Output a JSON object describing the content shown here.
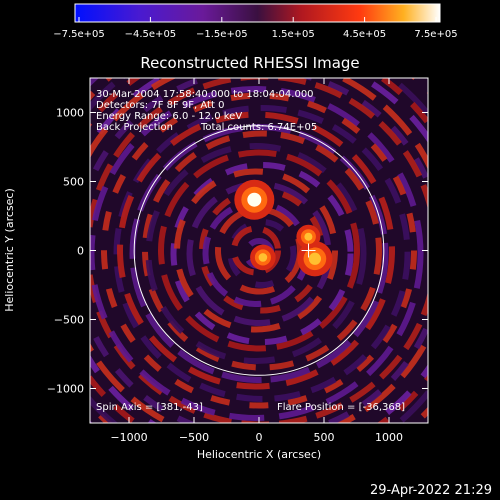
{
  "colorbar": {
    "tick_labels": [
      "-7.5e+05",
      "-4.5e+05",
      "-1.5e+05",
      "1.5e+05",
      "4.5e+05",
      "7.5e+05"
    ],
    "range": [
      -750000,
      750000
    ]
  },
  "title": "Reconstructed RHESSI Image",
  "info": {
    "time_range": "30-Mar-2004 17:58:40.000 to 18:04:04.000",
    "detectors": "Detectors: 7F 8F 9F, Att 0",
    "energy": "Energy Range: 6.0 - 12.0 keV",
    "method": "Back Projection",
    "counts": "Total counts: 6.74E+05"
  },
  "footer_left": "Spin Axis = [381,-43]",
  "footer_right": "Flare Position = [-36,368]",
  "axes": {
    "xlabel": "Heliocentric X (arcsec)",
    "ylabel": "Heliocentric Y (arcsec)",
    "xlim": [
      -1300,
      1300
    ],
    "ylim": [
      -1250,
      1250
    ],
    "xticks": [
      -1000,
      -500,
      0,
      500,
      1000
    ],
    "yticks": [
      -1000,
      -500,
      0,
      500,
      1000
    ],
    "xtick_labels": [
      "−1000",
      "−500",
      "0",
      "500",
      "1000"
    ],
    "ytick_labels": [
      "−1000",
      "−500",
      "0",
      "500",
      "1000"
    ]
  },
  "sources": [
    {
      "x": -36,
      "y": 368,
      "strength": 1.0
    },
    {
      "x": 430,
      "y": -60,
      "strength": 0.85
    },
    {
      "x": 30,
      "y": -50,
      "strength": 0.55
    },
    {
      "x": 380,
      "y": 100,
      "strength": 0.5
    }
  ],
  "crosshair": {
    "x": 381,
    "y": 0
  },
  "solar_disk_radius": 960,
  "colors": {
    "background": "#000000",
    "text": "#ffffff",
    "limb": "#ffffff"
  },
  "timestamp": "29-Apr-2022 21:29"
}
